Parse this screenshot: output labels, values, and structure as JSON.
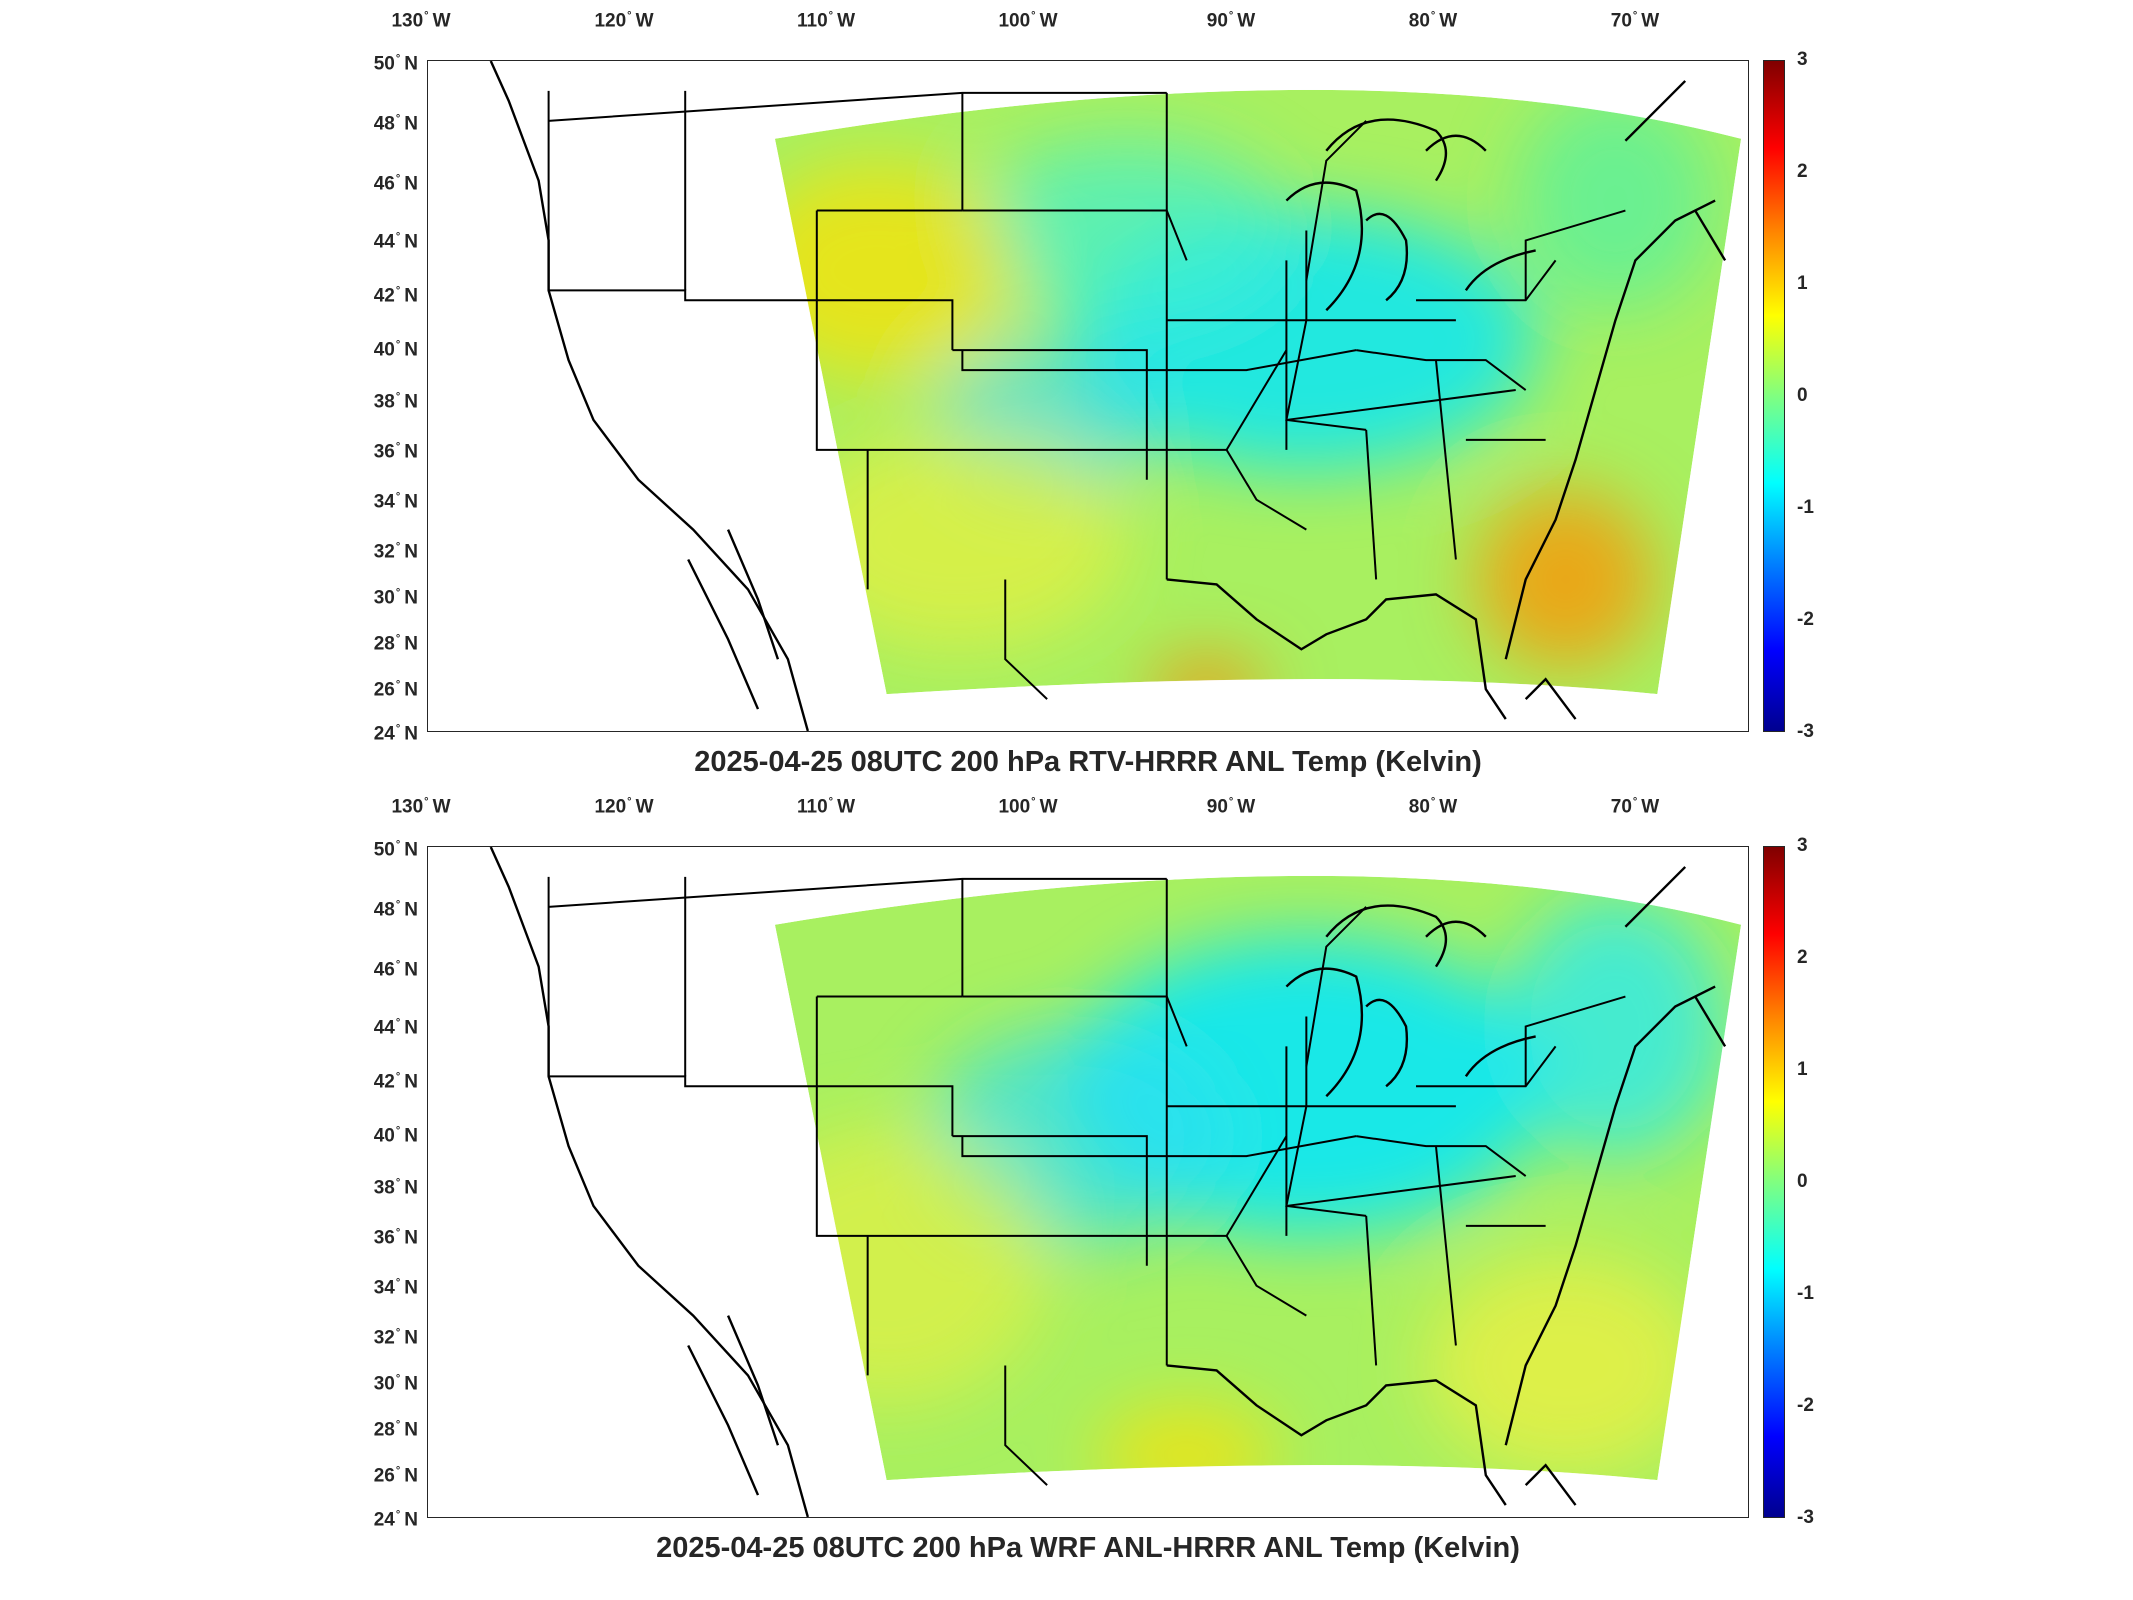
{
  "panels": [
    {
      "title": "2025-04-25 08UTC 200 hPa RTV-HRRR ANL Temp (Kelvin)"
    },
    {
      "title": "2025-04-25 08UTC 200 hPa WRF ANL-HRRR ANL Temp (Kelvin)"
    }
  ],
  "lon_ticks": [
    "130",
    "120",
    "110",
    "100",
    "90",
    "80",
    "70"
  ],
  "lon_suffix": "W",
  "lat_ticks": [
    "50",
    "48",
    "46",
    "44",
    "42",
    "40",
    "38",
    "36",
    "34",
    "32",
    "30",
    "28",
    "26",
    "24"
  ],
  "lat_suffix": "N",
  "colorbar": {
    "ticks": [
      "3",
      "2",
      "1",
      "0",
      "-1",
      "-2",
      "-3"
    ],
    "range": [
      -3,
      3
    ],
    "colormap": "jet"
  },
  "map": {
    "projection": "lambert-conformal",
    "region": "CONUS",
    "features": [
      "coastlines",
      "state-borders"
    ]
  }
}
